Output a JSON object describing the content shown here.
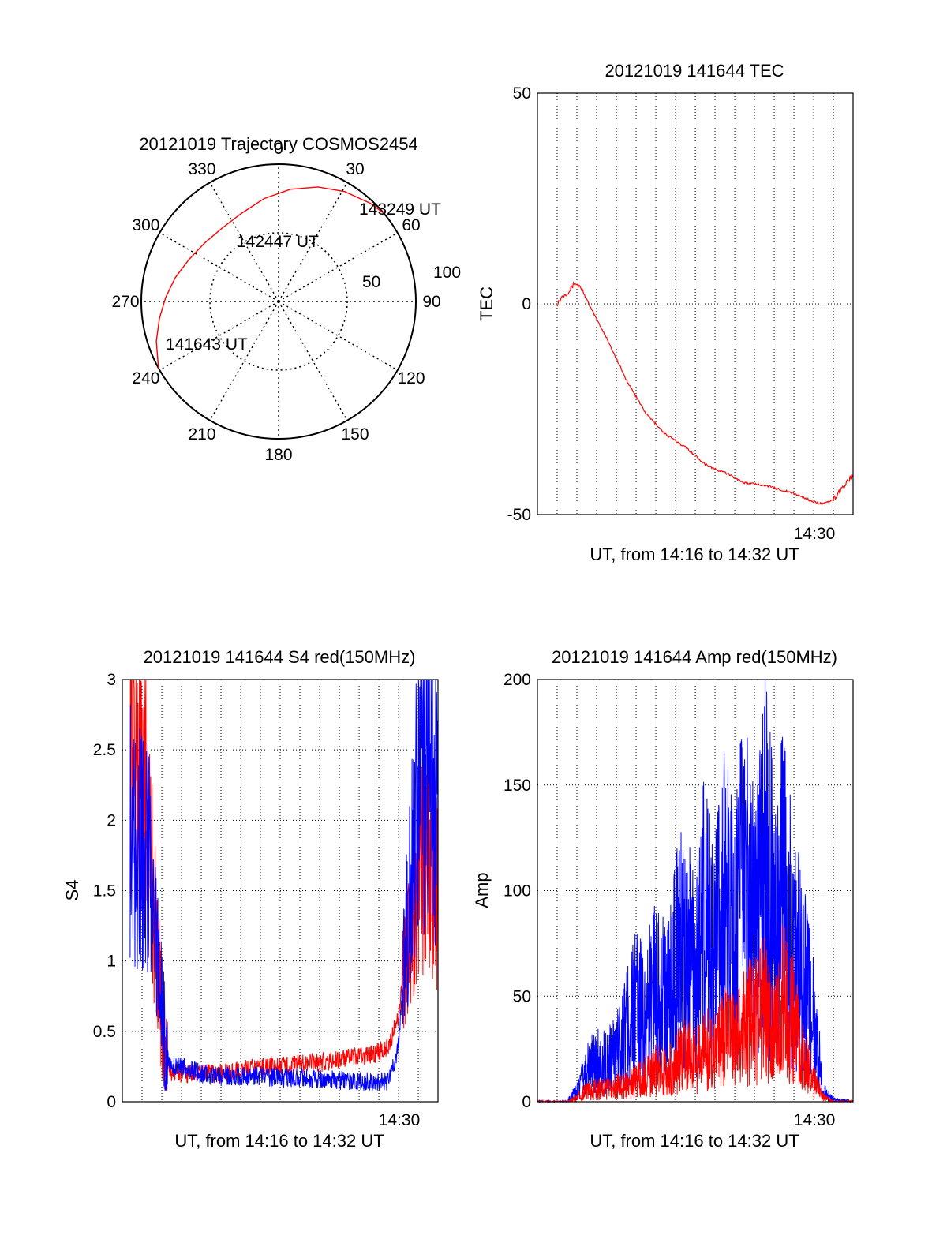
{
  "chart_data": [
    {
      "type": "polar-trajectory",
      "title": "20121019 Trajectory COSMOS2454",
      "azimuth_labels": [
        "0",
        "30",
        "60",
        "90",
        "120",
        "150",
        "180",
        "210",
        "240",
        "270",
        "300",
        "330"
      ],
      "radius_labels": [
        "50",
        "100"
      ],
      "annotations": [
        "143249 UT",
        "142447 UT",
        "141643 UT"
      ],
      "series": [
        {
          "azimuth_deg": [
            241,
            252,
            262,
            272,
            283,
            295,
            308,
            322,
            337,
            352,
            6,
            19,
            31,
            43,
            50
          ],
          "radius": [
            100,
            93.6,
            87.6,
            82.3,
            77.2,
            72.1,
            68.7,
            67.4,
            69.6,
            75.7,
            82.2,
            88.2,
            93.4,
            97.8,
            100
          ],
          "color": "#ff0000"
        }
      ]
    },
    {
      "type": "line",
      "title": "20121019 141644 TEC",
      "xlabel": "UT, from 14:16 to 14:32 UT",
      "ylabel": "TEC",
      "xlim": [
        14.2667,
        14.5333
      ],
      "ylim": [
        -50,
        50
      ],
      "yticks": [
        "50",
        "0",
        "-50"
      ],
      "xtick_labels": [
        "14:30"
      ],
      "grid": true,
      "series": [
        {
          "color": "#ff0000",
          "x": [
            14.2833,
            14.2883,
            14.2933,
            14.2983,
            14.3033,
            14.3117,
            14.325,
            14.3417,
            14.3583,
            14.375,
            14.3917,
            14.4083,
            14.4183,
            14.425,
            14.4417,
            14.4583,
            14.4833,
            14.5,
            14.5083,
            14.5167,
            14.5233,
            14.5333
          ],
          "y": [
            0,
            2,
            3,
            5,
            4,
            -1,
            -8,
            -18,
            -26,
            -31,
            -34,
            -38,
            -39.5,
            -40,
            -42.5,
            -43,
            -45,
            -47,
            -47.5,
            -46.5,
            -44,
            -40.5
          ]
        }
      ]
    },
    {
      "type": "line",
      "title": "20121019 141644 S4 red(150MHz)",
      "xlabel": "UT, from 14:16 to 14:32 UT",
      "ylabel": "S4",
      "xlim": [
        14.2667,
        14.5333
      ],
      "ylim": [
        0,
        3
      ],
      "yticks": [
        "3",
        "2.5",
        "2",
        "1.5",
        "1",
        "0.5",
        "0"
      ],
      "xtick_labels": [
        "14:30"
      ],
      "grid": true,
      "series": [
        {
          "color": "#ff0000",
          "x": [
            14.2733,
            14.2783,
            14.2833,
            14.2883,
            14.2933,
            14.2983,
            14.3033,
            14.3083,
            14.3167,
            14.3333,
            14.35,
            14.3667,
            14.3833,
            14.4,
            14.4167,
            14.4333,
            14.45,
            14.4667,
            14.4833,
            14.4917,
            14.5,
            14.5083,
            14.5167,
            14.525,
            14.5333
          ],
          "y": [
            2.9,
            2.5,
            2.3,
            2.0,
            1.4,
            0.8,
            0.3,
            0.2,
            0.2,
            0.2,
            0.2,
            0.22,
            0.25,
            0.25,
            0.27,
            0.28,
            0.3,
            0.32,
            0.35,
            0.4,
            0.6,
            1.2,
            1.6,
            1.7,
            1.5
          ]
        },
        {
          "color": "#0000ff",
          "x": [
            14.2733,
            14.2783,
            14.2833,
            14.2883,
            14.2933,
            14.2983,
            14.3033,
            14.3083,
            14.3167,
            14.3333,
            14.35,
            14.3667,
            14.3833,
            14.4,
            14.4167,
            14.4333,
            14.45,
            14.4667,
            14.4833,
            14.4917,
            14.5,
            14.5083,
            14.5167,
            14.525,
            14.5333
          ],
          "y": [
            2.0,
            1.9,
            1.8,
            1.8,
            1.3,
            0.9,
            0.35,
            0.25,
            0.25,
            0.2,
            0.18,
            0.18,
            0.18,
            0.17,
            0.17,
            0.16,
            0.15,
            0.14,
            0.14,
            0.14,
            0.4,
            1.4,
            2.2,
            2.5,
            2.0
          ]
        }
      ]
    },
    {
      "type": "line",
      "title": "20121019 141644 Amp red(150MHz)",
      "xlabel": "UT, from 14:16 to 14:32 UT",
      "ylabel": "Amp",
      "xlim": [
        14.2667,
        14.5333
      ],
      "ylim": [
        0,
        200
      ],
      "yticks": [
        "200",
        "150",
        "100",
        "50",
        "0"
      ],
      "xtick_labels": [
        "14:30"
      ],
      "grid": true,
      "series": [
        {
          "color": "#0000ff",
          "x": [
            14.2667,
            14.2833,
            14.2917,
            14.3,
            14.3083,
            14.3167,
            14.325,
            14.3333,
            14.3417,
            14.35,
            14.3583,
            14.3667,
            14.375,
            14.3833,
            14.3917,
            14.4,
            14.4083,
            14.4167,
            14.425,
            14.4333,
            14.4417,
            14.45,
            14.4583,
            14.4667,
            14.475,
            14.4833,
            14.4917,
            14.5,
            14.5083,
            14.5167,
            14.5333
          ],
          "y": [
            0,
            0,
            0,
            5,
            15,
            20,
            18,
            25,
            35,
            45,
            40,
            60,
            45,
            65,
            80,
            55,
            90,
            70,
            95,
            75,
            110,
            80,
            115,
            85,
            100,
            70,
            60,
            40,
            5,
            1,
            0
          ]
        },
        {
          "color": "#ff0000",
          "x": [
            14.2667,
            14.2833,
            14.2917,
            14.3,
            14.3083,
            14.3167,
            14.325,
            14.3333,
            14.3417,
            14.35,
            14.3583,
            14.3667,
            14.375,
            14.3833,
            14.3917,
            14.4,
            14.4083,
            14.4167,
            14.425,
            14.4333,
            14.4417,
            14.45,
            14.4583,
            14.4667,
            14.475,
            14.4833,
            14.4917,
            14.5,
            14.5083,
            14.5167,
            14.5333
          ],
          "y": [
            0,
            0,
            0,
            2,
            5,
            6,
            6,
            7,
            8,
            10,
            12,
            15,
            14,
            18,
            22,
            20,
            25,
            24,
            30,
            28,
            35,
            40,
            45,
            30,
            50,
            40,
            20,
            10,
            2,
            0,
            0
          ]
        }
      ]
    }
  ]
}
